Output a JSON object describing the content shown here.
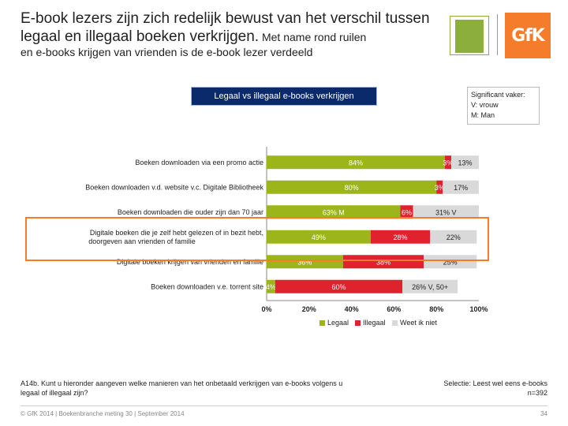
{
  "header": {
    "title_main": "E-book lezers zijn zich redelijk bewust van het verschil tussen legaal en illegaal boeken verkrijgen.",
    "title_small": " Met name rond ruilen",
    "subtitle": "en e-books krijgen van vrienden is de e-book lezer verdeeld"
  },
  "logos": {
    "gfk": "GfK"
  },
  "significance": {
    "line1": "Significant vaker:",
    "line2": "V: vrouw",
    "line3": "M: Man"
  },
  "chart_data": {
    "type": "bar",
    "orientation": "horizontal",
    "stacked": "100%",
    "title": "Legaal vs illegaal e-books verkrijgen",
    "categories": [
      "Boeken downloaden via een promo actie",
      "Boeken downloaden v.d. website v.c. Digitale Bibliotheek",
      "Boeken downloaden die ouder zijn dan 70 jaar",
      "Digitale boeken die je zelf hebt gelezen of in bezit hebt, doorgeven aan vrienden of familie",
      "Digitale boeken krijgen van vrienden en familie",
      "Boeken downloaden v.e. torrent site"
    ],
    "series": [
      {
        "name": "Legaal",
        "values": [
          84,
          80,
          63,
          49,
          36,
          4
        ]
      },
      {
        "name": "Illegaal",
        "values": [
          3,
          3,
          6,
          28,
          38,
          60
        ]
      },
      {
        "name": "Weet ik niet",
        "values": [
          13,
          17,
          31,
          22,
          25,
          26
        ]
      }
    ],
    "labels": [
      [
        "84%",
        "3%",
        "13%"
      ],
      [
        "80%",
        "3%",
        "17%"
      ],
      [
        "63% M",
        "6%",
        "31% V"
      ],
      [
        "49%",
        "28%",
        "22%"
      ],
      [
        "36%",
        "38%",
        "25%"
      ],
      [
        "4%",
        "60%",
        "26% V, 50+"
      ]
    ],
    "xticks": [
      "0%",
      "20%",
      "40%",
      "60%",
      "80%",
      "100%"
    ],
    "xlim": [
      0,
      100
    ],
    "colors": [
      "#9bb51a",
      "#e0212e",
      "#d9d9d9"
    ],
    "legend_position": "bottom"
  },
  "notes": {
    "question": "A14b. Kunt u hieronder aangeven welke manieren van het onbetaald verkrijgen van e-books volgens u legaal of illegaal zijn?",
    "selection": "Selectie: Leest wel eens e-books",
    "n": "n=392"
  },
  "footer": {
    "text": "© GfK 2014 | Boekenbranche meting 30 | September 2014",
    "page": "34"
  }
}
